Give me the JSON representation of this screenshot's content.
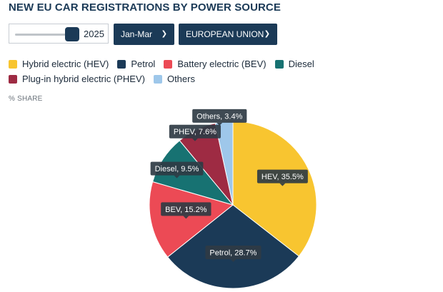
{
  "title": "NEW EU CAR REGISTRATIONS BY POWER SOURCE",
  "controls": {
    "year": "2025",
    "period": "Jan-Mar",
    "region": "EUROPEAN UNION"
  },
  "share_label": "% SHARE",
  "legend": [
    {
      "label": "Hybrid electric (HEV)",
      "color": "#f8c530"
    },
    {
      "label": "Petrol",
      "color": "#1b3a57"
    },
    {
      "label": "Battery electric (BEV)",
      "color": "#ec4a55"
    },
    {
      "label": "Diesel",
      "color": "#177272"
    },
    {
      "label": "Plug-in hybrid electric (PHEV)",
      "color": "#9e2b43"
    },
    {
      "label": "Others",
      "color": "#9ec7ea"
    }
  ],
  "chart_data": {
    "type": "pie",
    "title": "NEW EU CAR REGISTRATIONS BY POWER SOURCE",
    "unit": "% SHARE",
    "slices": [
      {
        "name": "HEV",
        "value": 35.5,
        "label": "HEV, 35.5%",
        "color": "#f8c530"
      },
      {
        "name": "Petrol",
        "value": 28.7,
        "label": "Petrol, 28.7%",
        "color": "#1b3a57"
      },
      {
        "name": "BEV",
        "value": 15.2,
        "label": "BEV, 15.2%",
        "color": "#ec4a55"
      },
      {
        "name": "Diesel",
        "value": 9.5,
        "label": "Diesel, 9.5%",
        "color": "#177272"
      },
      {
        "name": "PHEV",
        "value": 7.6,
        "label": "PHEV, 7.6%",
        "color": "#9e2b43"
      },
      {
        "name": "Others",
        "value": 3.4,
        "label": "Others, 3.4%",
        "color": "#9ec7ea"
      }
    ]
  }
}
